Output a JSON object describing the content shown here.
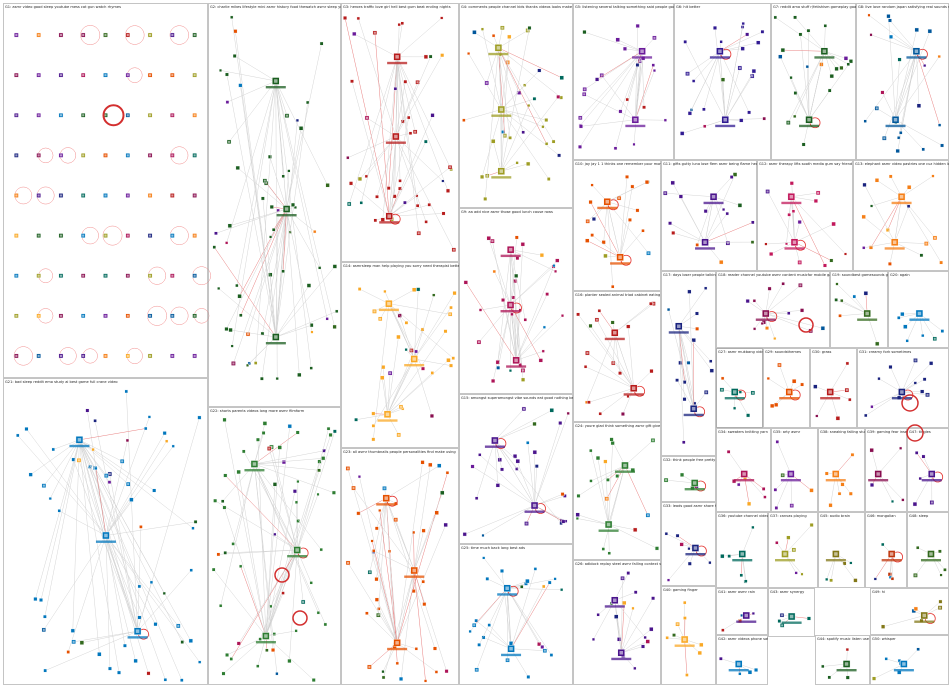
{
  "diagram": {
    "title": "",
    "panels": [
      {
        "id": "G1",
        "label": "G1: asmr video good sleep youtube mess cat gun watch rhymes",
        "kind": "grid",
        "cols": 9,
        "rows": 9,
        "accent": "#1a237e"
      },
      {
        "id": "G2",
        "label": "G2: charlie mikes lifestyle mini asmr history food thewatch asmr sleep youtube",
        "kind": "cluster",
        "accent": "#1b5e20"
      },
      {
        "id": "G3",
        "label": "G3: heroes traffic love girl hell best gum beat ending nights",
        "kind": "cluster",
        "accent": "#b71c1c"
      },
      {
        "id": "G4",
        "label": "G4: comments people channel kids thanks videos looks make seem comment",
        "kind": "cluster",
        "accent": "#9e9d24"
      },
      {
        "id": "G5",
        "label": "G5: listening several talking something said people good thought ideas",
        "kind": "cluster",
        "accent": "#6a1b9a"
      },
      {
        "id": "G6",
        "label": "G6: hit better",
        "kind": "cluster",
        "accent": "#311b92"
      },
      {
        "id": "G7",
        "label": "G7: reddit ama stuff r/fetishism gameplay goal chris rodriguez pick easier",
        "kind": "cluster",
        "accent": "#1b5e20"
      },
      {
        "id": "G8",
        "label": "G8: live love random japan satisfying real sounds rodriguez paris korea",
        "kind": "cluster",
        "accent": "#01579b"
      },
      {
        "id": "G9",
        "label": "G9: aa add nice asmr those good lunch cause rows",
        "kind": "cluster",
        "accent": "#ad1457"
      },
      {
        "id": "G10",
        "label": "G10: jay jay 1 1 thinks one remember pour month's busy",
        "kind": "cluster",
        "accent": "#e65100"
      },
      {
        "id": "G11",
        "label": "G11: gifts gutty luna lose flem asmr being flame heard jessica youtube",
        "kind": "cluster",
        "accent": "#4a148c"
      },
      {
        "id": "G12",
        "label": "G12: asmr therapy lifts sooth media gum say friend easy chewing pub",
        "kind": "cluster",
        "accent": "#c2185b"
      },
      {
        "id": "G13",
        "label": "G13: elephant asmr video pastries one cuz hidden louis robot comments",
        "kind": "cluster",
        "accent": "#f57f17"
      },
      {
        "id": "G14",
        "label": "G14: asmrsleep man help playing you sorry need therapist better",
        "kind": "cluster",
        "accent": "#f9a825"
      },
      {
        "id": "G15",
        "label": "G15: amongst superamongst vibe sounds eat good nothing best hope normal",
        "kind": "cluster",
        "accent": "#4a148c"
      },
      {
        "id": "G16",
        "label": "G16: planter sealed animal triad cabinet eating girl popcorn people",
        "kind": "cluster",
        "accent": "#b71c1c"
      },
      {
        "id": "G17",
        "label": "G17: days loser people talking reason online series video sleep youtube",
        "kind": "cluster",
        "accent": "#1a237e"
      },
      {
        "id": "G18",
        "label": "G18: reader channel youtube asmr content musicfor mobile game sound emotional",
        "kind": "cluster",
        "accent": "#880e4f"
      },
      {
        "id": "G19",
        "label": "G19: soundbest gamesounds gameplay videogame play listen deep relaxing",
        "kind": "cluster",
        "accent": "#33691e"
      },
      {
        "id": "G20",
        "label": "G20: again",
        "kind": "cluster",
        "accent": "#0277bd"
      },
      {
        "id": "G21",
        "label": "G21: bad sleep reddit emo study ai best game full crane video",
        "kind": "cluster",
        "accent": "#0277bd"
      },
      {
        "id": "G22",
        "label": "G22: shorts parents videos long more asmr filmform",
        "kind": "cluster",
        "accent": "#2e7d32"
      },
      {
        "id": "G23",
        "label": "G23: all asmr thumbnails people personalities find make using",
        "kind": "cluster",
        "accent": "#e65100"
      },
      {
        "id": "G24",
        "label": "G24: youre glad think something asmr gift give start unique",
        "kind": "cluster",
        "accent": "#2e7d32"
      },
      {
        "id": "G25",
        "label": "G25: time much back long best ads",
        "kind": "cluster",
        "accent": "#0277bd"
      },
      {
        "id": "G26",
        "label": "G26: adblock replay steel asmr falling context videos concern listen got",
        "kind": "cluster",
        "accent": "#4a148c"
      },
      {
        "id": "G27",
        "label": "G27: asmr mukbang videos watching",
        "kind": "cluster",
        "accent": "#00695c"
      },
      {
        "id": "G28",
        "label": "G28: food",
        "kind": "cluster",
        "accent": "#2e7d32"
      },
      {
        "id": "G29",
        "label": "G29: soundsthemes",
        "kind": "cluster",
        "accent": "#e65100"
      },
      {
        "id": "G30",
        "label": "G30: grass",
        "kind": "cluster",
        "accent": "#b71c1c"
      },
      {
        "id": "G31",
        "label": "G31: creamy fork sometimes",
        "kind": "cluster",
        "accent": "#1a237e"
      },
      {
        "id": "G32",
        "label": "G32: think people free pretty alone long hear lakes educated youtube",
        "kind": "cluster",
        "accent": "#2e7d32"
      },
      {
        "id": "G33",
        "label": "G33: leads good asmr share heavens audio from sounds cartoon head use",
        "kind": "cluster",
        "accent": "#1a237e"
      },
      {
        "id": "G34",
        "label": "G34: sweaters knitting yarn",
        "kind": "cluster",
        "accent": "#ad1457"
      },
      {
        "id": "G35",
        "label": "G35: arty asmr",
        "kind": "cluster",
        "accent": "#6a1b9a"
      },
      {
        "id": "G36",
        "label": "G36: youtube channel videos watch asmr mukbang cooking 50 less",
        "kind": "cluster",
        "accent": "#00695c"
      },
      {
        "id": "G37",
        "label": "G37: canvas playing",
        "kind": "cluster",
        "accent": "#9e9d24"
      },
      {
        "id": "G38",
        "label": "G38: sneaking falling stuff satisfying summer soundscape ambiance",
        "kind": "cluster",
        "accent": "#f57f17"
      },
      {
        "id": "G39",
        "label": "G39: gaming fear insert",
        "kind": "cluster",
        "accent": "#880e4f"
      },
      {
        "id": "G40",
        "label": "G40: gaming finger",
        "kind": "cluster",
        "accent": "#f9a825"
      },
      {
        "id": "G41",
        "label": "G41: asmr asmr rain",
        "kind": "cluster",
        "accent": "#4a148c"
      },
      {
        "id": "G42",
        "label": "G42: asmr videos phone satisfying also lmk",
        "kind": "cluster",
        "accent": "#0277bd"
      },
      {
        "id": "G43",
        "label": "G43: asmr synergy",
        "kind": "cluster",
        "accent": "#00695c"
      },
      {
        "id": "G44",
        "label": "G44: spotify music listen use homepage",
        "kind": "cluster",
        "accent": "#1b5e20"
      },
      {
        "id": "G45",
        "label": "G45: audio brain",
        "kind": "cluster",
        "accent": "#827717"
      },
      {
        "id": "G46",
        "label": "G46: mongolian",
        "kind": "cluster",
        "accent": "#bf360c"
      },
      {
        "id": "G47",
        "label": "G47: tingles",
        "kind": "cluster",
        "accent": "#4a148c"
      },
      {
        "id": "G48",
        "label": "G48: sleep",
        "kind": "cluster",
        "accent": "#33691e"
      },
      {
        "id": "G49",
        "label": "G49: hi",
        "kind": "cluster",
        "accent": "#827717"
      },
      {
        "id": "G50",
        "label": "G50: whisper",
        "kind": "cluster",
        "accent": "#0277bd"
      }
    ]
  }
}
